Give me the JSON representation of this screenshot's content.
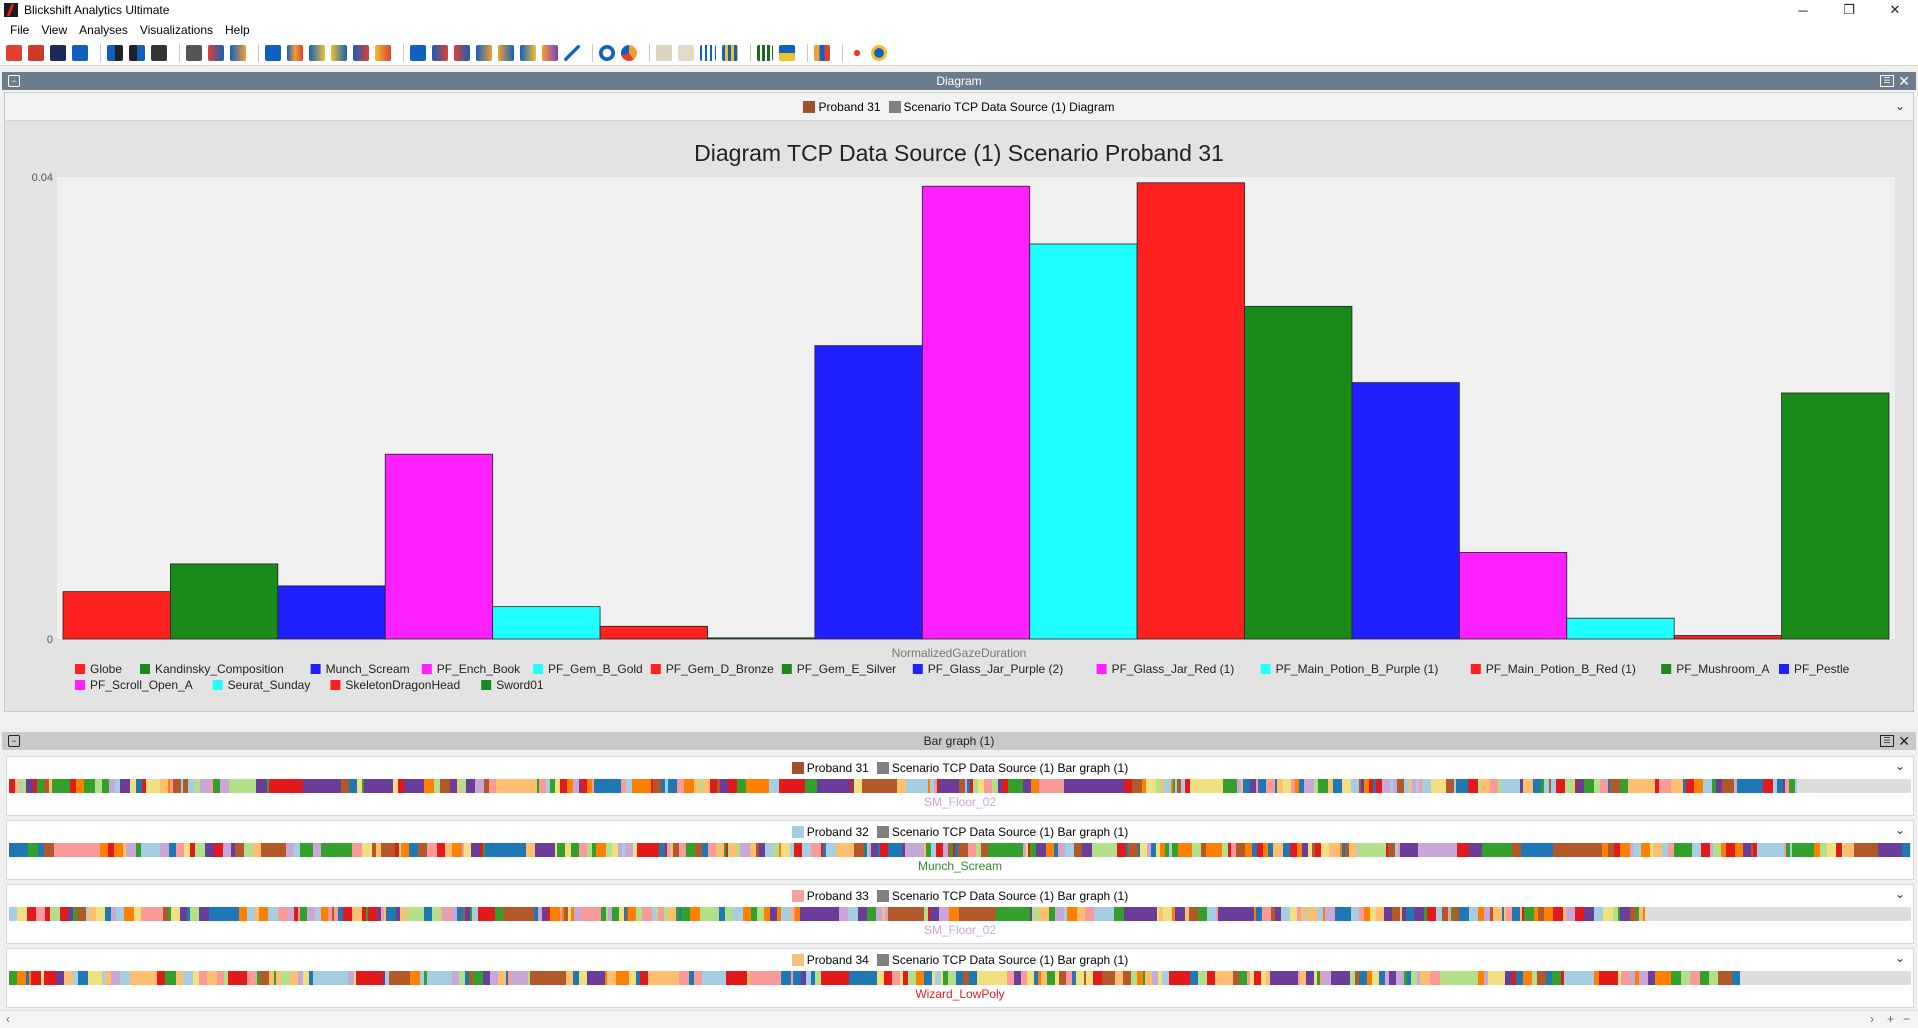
{
  "window": {
    "title": "Blickshift Analytics Ultimate"
  },
  "menu": [
    "File",
    "View",
    "Analyses",
    "Visualizations",
    "Help"
  ],
  "diagram_panel": {
    "header": "Diagram",
    "legend": [
      {
        "label": "Proband 31",
        "color": "#a0522d"
      },
      {
        "label": "Scenario TCP Data Source (1) Diagram",
        "color": "#808080"
      }
    ],
    "chart_data": {
      "type": "bar",
      "title": "Diagram TCP Data Source (1) Scenario Proband 31",
      "xlabel": "NormalizedGazeDuration",
      "ylabel": "",
      "ylim": [
        0,
        0.04
      ],
      "yticks": [
        "0",
        "0.04"
      ],
      "grid": false,
      "legend_position": "bottom",
      "categories": [
        "Globe",
        "Kandinsky_Composition",
        "Munch_Scream",
        "PF_Ench_Book",
        "PF_Gem_B_Gold",
        "PF_Gem_D_Bronze",
        "PF_Gem_E_Silver",
        "PF_Glass_Jar_Purple (2)",
        "PF_Glass_Jar_Red (1)",
        "PF_Main_Potion_B_Purple (1)",
        "PF_Main_Potion_B_Red (1)",
        "PF_Mushroom_A",
        "PF_Pestle",
        "PF_Scroll_Open_A",
        "Seurat_Sunday",
        "SkeletonDragonHead",
        "Sword01"
      ],
      "values": [
        0.0041,
        0.0065,
        0.0046,
        0.016,
        0.0028,
        0.0011,
        0.0001,
        0.0254,
        0.0392,
        0.0342,
        0.0395,
        0.0288,
        0.0222,
        0.0075,
        0.0018,
        0.0003,
        0.0213
      ],
      "colors": [
        "#ff2020",
        "#1a8a1a",
        "#2020ff",
        "#ff20ff",
        "#20ffff",
        "#ff2020",
        "#1a8a1a",
        "#2020ff",
        "#ff20ff",
        "#20ffff",
        "#ff2020",
        "#1a8a1a",
        "#2020ff",
        "#ff20ff",
        "#20ffff",
        "#ff2020",
        "#1a8a1a"
      ]
    }
  },
  "bar_graph_panel": {
    "header": "Bar graph (1)",
    "rows": [
      {
        "proband": "Proband 31",
        "color": "#a0522d",
        "scenario": "Scenario TCP Data Source (1) Bar graph (1)",
        "label": "SM_Floor_02",
        "label_color": "#c9a8d8",
        "fill": 0.94
      },
      {
        "proband": "Proband 32",
        "color": "#a6cee3",
        "scenario": "Scenario TCP Data Source (1) Bar graph (1)",
        "label": "Munch_Scream",
        "label_color": "#2e8b2e",
        "fill": 1.0
      },
      {
        "proband": "Proband 33",
        "color": "#f4a3a3",
        "scenario": "Scenario TCP Data Source (1) Bar graph (1)",
        "label": "SM_Floor_02",
        "label_color": "#c9a8d8",
        "fill": 0.86
      },
      {
        "proband": "Proband 34",
        "color": "#f9c07a",
        "scenario": "Scenario TCP Data Source (1) Bar graph (1)",
        "label": "Wizard_LowPoly",
        "label_color": "#e02020",
        "fill": 0.91
      }
    ],
    "scenario_color": "#808080"
  },
  "colors": {
    "palette": [
      "#c9a8d8",
      "#e31a1c",
      "#33a02c",
      "#1f78b4",
      "#ff7f00",
      "#6a3d9a",
      "#fdbf6f",
      "#a6cee3",
      "#fb9a99",
      "#b2df8a",
      "#f0e080",
      "#b15928"
    ]
  }
}
